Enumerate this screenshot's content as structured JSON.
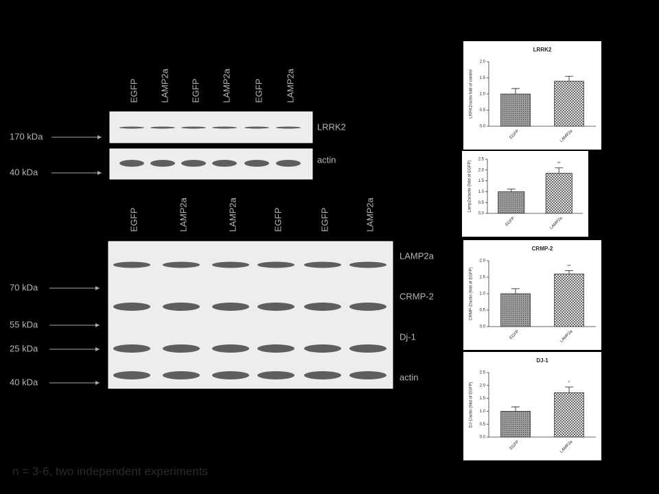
{
  "blots": [
    {
      "lanes": [
        "EGFP",
        "LAMP2a",
        "EGFP",
        "LAMP2a",
        "EGFP",
        "LAMP2a"
      ],
      "bands": [
        "LRRK2",
        "actin"
      ],
      "markers": [
        "170 kDa",
        "40 kDa"
      ]
    },
    {
      "lanes": [
        "EGFP",
        "LAMP2a",
        "LAMP2a",
        "EGFP",
        "EGFP",
        "LAMP2a"
      ],
      "bands": [
        "LAMP2a",
        "CRMP-2",
        "Dj-1",
        "actin"
      ],
      "markers": [
        "70 kDa",
        "55 kDa",
        "25 kDa",
        "40 kDa"
      ]
    }
  ],
  "footnote": "n = 3-6, two independent experiments",
  "chart_data": [
    {
      "type": "bar",
      "title": "LRRK2",
      "y_label": "LRRK2/actin fold of control",
      "categories": [
        "EGFP",
        "LAMP2a"
      ],
      "values": [
        1.0,
        1.4
      ],
      "errors": [
        0.17,
        0.15
      ],
      "ylim": [
        0,
        2.0
      ],
      "yticks": [
        {
          "value": 0,
          "label": "0.0"
        },
        0.5,
        {
          "value": 1,
          "label": "1.0"
        },
        1.5,
        {
          "value": 2,
          "label": "2.0"
        }
      ]
    },
    {
      "type": "bar",
      "y_label": "Lamp2a/actin (fold of EGFP)",
      "categories": [
        "EGFP",
        "LAMP2a"
      ],
      "values": [
        1.0,
        1.85
      ],
      "errors": [
        0.12,
        0.25
      ],
      "annotation": "**",
      "ylim": [
        0,
        2.5
      ],
      "yticks": [
        {
          "value": 0,
          "label": "0.0"
        },
        0.5,
        {
          "value": 1,
          "label": "1.0"
        },
        1.5,
        {
          "value": 2,
          "label": "2.0"
        },
        2.5
      ]
    },
    {
      "type": "bar",
      "title": "CRMP-2",
      "y_label": "CRMP-2/actin (fold of EGFP)",
      "categories": [
        "EGFP",
        "LAMP2a"
      ],
      "values": [
        1.0,
        1.6
      ],
      "errors": [
        0.15,
        0.1
      ],
      "annotation": "**",
      "ylim": [
        0,
        2.0
      ],
      "yticks": [
        {
          "value": 0,
          "label": "0.0"
        },
        0.5,
        {
          "value": 1,
          "label": "1.0"
        },
        1.5,
        {
          "value": 2,
          "label": "2.0"
        }
      ]
    },
    {
      "type": "bar",
      "title": "DJ-1",
      "y_label": "DJ-1/actin (fold of EGFP)",
      "categories": [
        "EGFP",
        "LAMP2a"
      ],
      "values": [
        1.0,
        1.72
      ],
      "errors": [
        0.17,
        0.22
      ],
      "annotation": "*",
      "ylim": [
        0,
        2.5
      ],
      "yticks": [
        {
          "value": 0,
          "label": "0.0"
        },
        0.5,
        {
          "value": 1,
          "label": "1.0"
        },
        1.5,
        {
          "value": 2,
          "label": "2.0"
        },
        2.5
      ]
    }
  ]
}
